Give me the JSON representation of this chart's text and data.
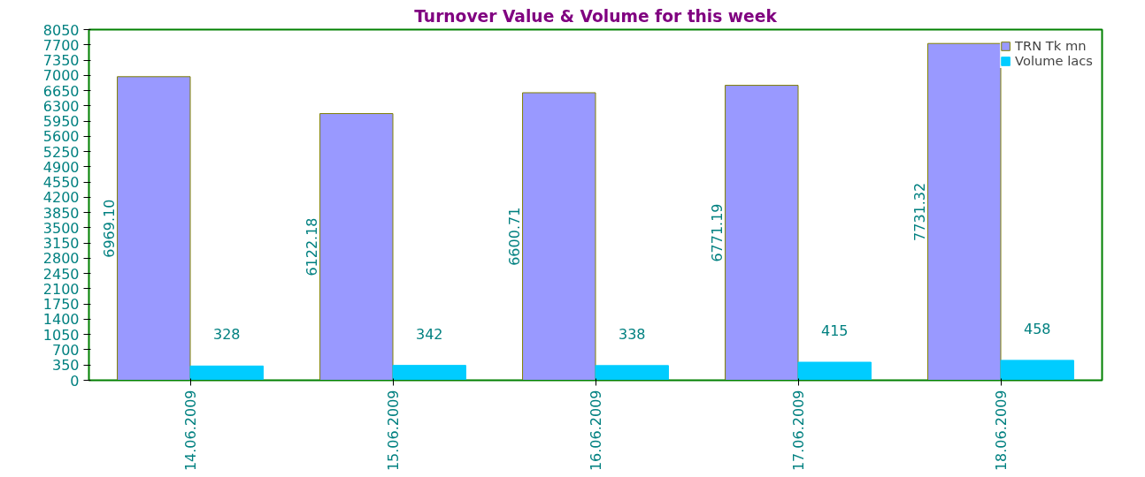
{
  "chart_data": {
    "type": "bar",
    "title": "Turnover Value & Volume for this week",
    "categories": [
      "14.06.2009",
      "15.06.2009",
      "16.06.2009",
      "17.06.2009",
      "18.06.2009"
    ],
    "series": [
      {
        "name": "TRN Tk mn",
        "color": "#9999ff",
        "values": [
          6969.1,
          6122.18,
          6600.71,
          6771.19,
          7731.32
        ],
        "value_labels": [
          "6969.10",
          "6122.18",
          "6600.71",
          "6771.19",
          "7731.32"
        ]
      },
      {
        "name": "Volume lacs",
        "color": "#00ccff",
        "values": [
          328,
          342,
          338,
          415,
          458
        ],
        "value_labels": [
          "328",
          "342",
          "338",
          "415",
          "458"
        ]
      }
    ],
    "ylim": [
      0,
      8050
    ],
    "yticks": [
      0,
      350,
      700,
      1050,
      1400,
      1750,
      2100,
      2450,
      2800,
      3150,
      3500,
      3850,
      4200,
      4550,
      4900,
      5250,
      5600,
      5950,
      6300,
      6650,
      7000,
      7350,
      7700,
      8050
    ],
    "grid": false,
    "legend": "top right"
  }
}
